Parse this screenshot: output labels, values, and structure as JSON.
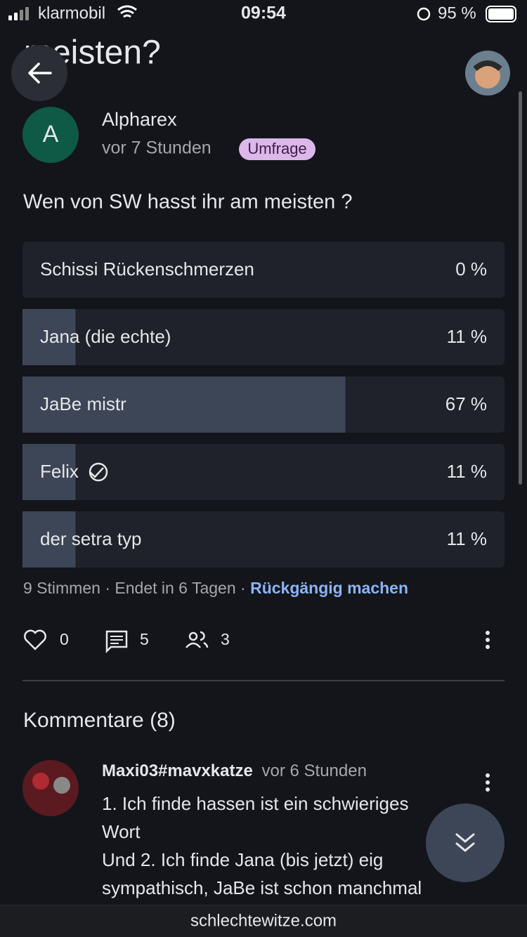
{
  "status_bar": {
    "carrier": "klarmobil",
    "time": "09:54",
    "battery": "95 %"
  },
  "header": {
    "title": "meisten?"
  },
  "post": {
    "author": "Alpharex",
    "avatar_letter": "A",
    "time": "vor 7 Stunden",
    "badge": "Umfrage",
    "question": "Wen von SW hasst ihr am meisten ?"
  },
  "poll": {
    "options": [
      {
        "label": "Schissi Rückenschmerzen",
        "percent": 0,
        "percent_label": "0 %"
      },
      {
        "label": "Jana (die echte)",
        "percent": 11,
        "percent_label": "11 %"
      },
      {
        "label": "JaBe mistr",
        "percent": 67,
        "percent_label": "67 %"
      },
      {
        "label": "Felix",
        "percent": 11,
        "percent_label": "11 %"
      },
      {
        "label": "der setra typ",
        "percent": 11,
        "percent_label": "11 %"
      }
    ],
    "votes": "9 Stimmen",
    "separator": "·",
    "ends": "Endet in 6 Tagen",
    "undo": "Rückgängig machen"
  },
  "actions": {
    "likes": 0,
    "comments": 5,
    "participants": 3
  },
  "comments": {
    "heading": "Kommentare (8)",
    "items": [
      {
        "author": "Maxi03#mavxkatze",
        "time": "vor 6 Stunden",
        "lines": [
          "1. Ich finde hassen ist ein schwieriges",
          "Wort",
          "Und 2. Ich finde Jana (bis jetzt) eig",
          "sympathisch, JaBe ist schon manchmal"
        ]
      }
    ]
  },
  "footer": {
    "domain": "schlechtewitze.com"
  }
}
